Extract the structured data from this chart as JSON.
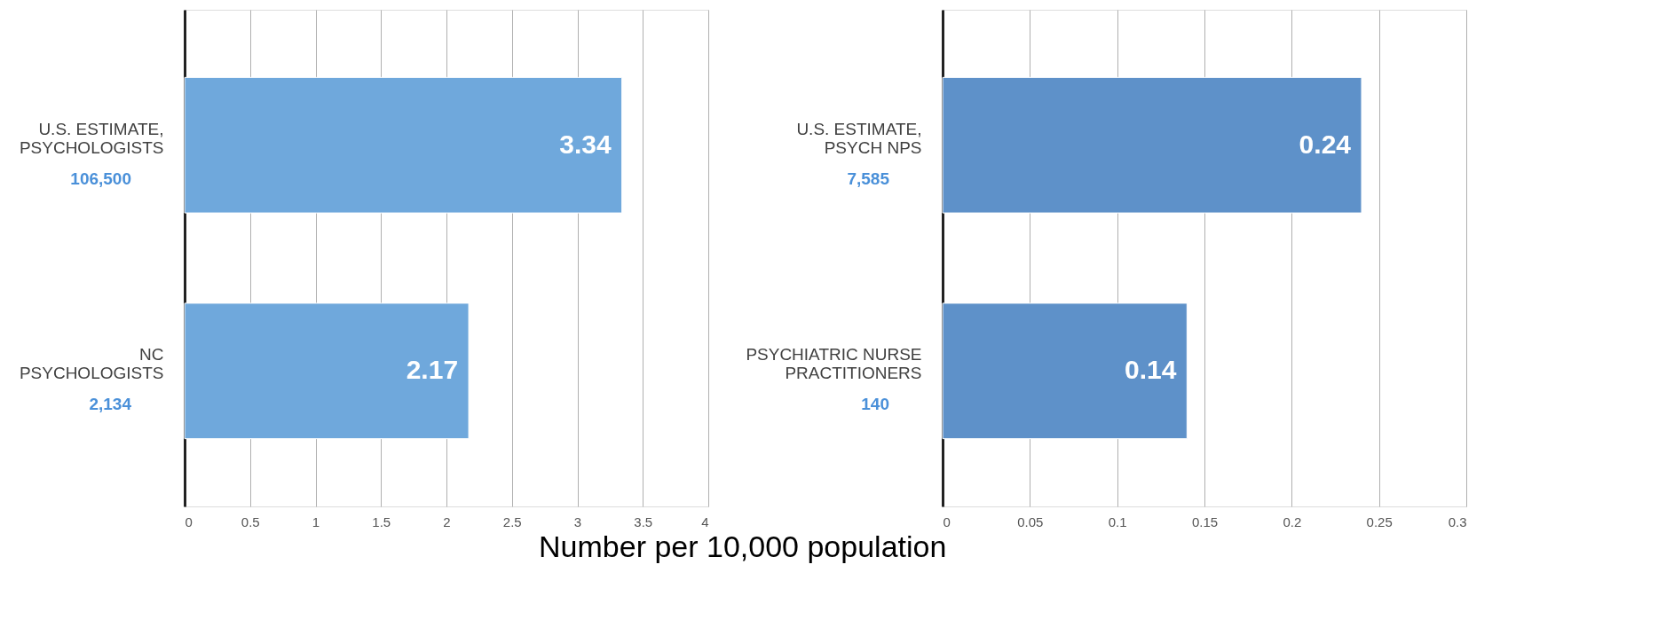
{
  "chart_data": [
    {
      "type": "bar",
      "orientation": "horizontal",
      "categories": [
        "U.S. ESTIMATE,\nPSYCHOLOGISTS",
        "NC\nPSYCHOLOGISTS"
      ],
      "values": [
        3.34,
        2.17
      ],
      "color": "#6fa8dc",
      "xlim": [
        0,
        4
      ],
      "xticks": [
        0,
        0.5,
        1,
        1.5,
        2,
        2.5,
        3,
        3.5,
        4
      ],
      "grid": "x",
      "data_labels": true,
      "xlabel": "Number per 10,000 population",
      "annotations": [
        "106,500",
        "2,134"
      ]
    },
    {
      "type": "bar",
      "orientation": "horizontal",
      "categories": [
        "U.S. ESTIMATE,\nPSYCH NPS",
        "PSYCHIATRIC NURSE\nPRACTITIONERS"
      ],
      "values": [
        0.24,
        0.14
      ],
      "color": "#5e91c9",
      "xlim": [
        0,
        0.3
      ],
      "xticks": [
        0,
        0.05,
        0.1,
        0.15,
        0.2,
        0.25,
        0.3
      ],
      "grid": "x",
      "data_labels": true,
      "annotations": [
        "7,585",
        "140"
      ]
    }
  ]
}
